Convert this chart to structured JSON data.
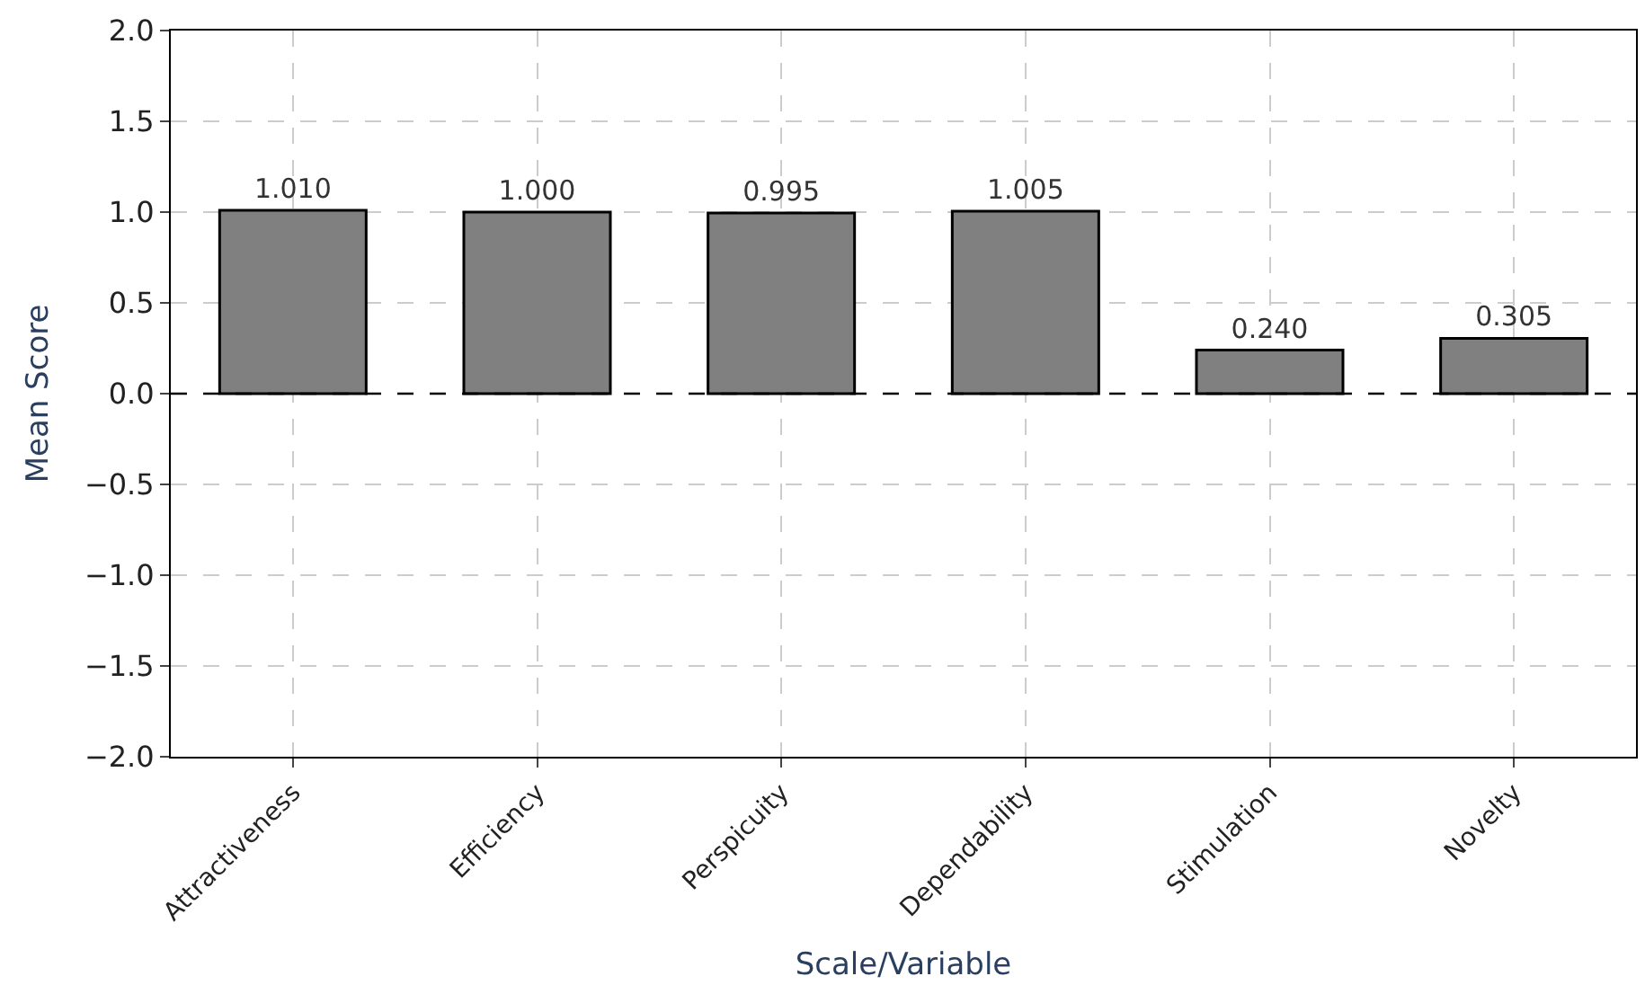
{
  "chart_data": {
    "type": "bar",
    "xlabel": "Scale/Variable",
    "ylabel": "Mean Score",
    "categories": [
      "Attractiveness",
      "Efficiency",
      "Perspicuity",
      "Dependability",
      "Stimulation",
      "Novelty"
    ],
    "values": [
      1.01,
      1.0,
      0.995,
      1.005,
      0.24,
      0.305
    ],
    "value_labels": [
      "1.010",
      "1.000",
      "0.995",
      "1.005",
      "0.240",
      "0.305"
    ],
    "color": "#808080",
    "ylim": [
      -2.0,
      2.0
    ],
    "yticks": [
      {
        "value": -2.0,
        "label": "−2.0"
      },
      {
        "value": -1.5,
        "label": "−1.5"
      },
      {
        "value": -1.0,
        "label": "−1.0"
      },
      {
        "value": -0.5,
        "label": "−0.5"
      },
      {
        "value": 0.0,
        "label": "0.0"
      },
      {
        "value": 0.5,
        "label": "0.5"
      },
      {
        "value": 1.0,
        "label": "1.0"
      },
      {
        "value": 1.5,
        "label": "1.5"
      },
      {
        "value": 2.0,
        "label": "2.0"
      }
    ],
    "ref_lines": [
      {
        "axis": "y",
        "value": 0,
        "color": "#000000",
        "line_style": "dashed"
      }
    ],
    "grid": true,
    "legend": false
  }
}
